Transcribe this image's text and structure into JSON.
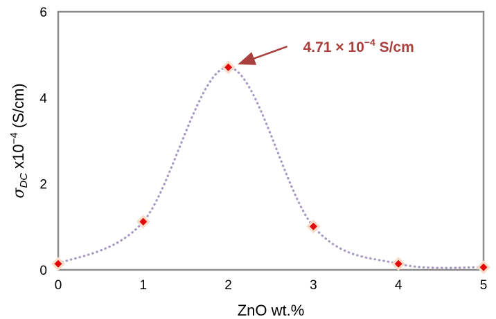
{
  "chart_data": {
    "type": "scatter",
    "x": [
      0,
      1,
      2,
      3,
      4,
      5
    ],
    "series": [
      {
        "values": [
          0.14,
          1.12,
          4.71,
          1.01,
          0.14,
          0.06
        ],
        "line_style": "dotted-smooth",
        "line_color": "#a797c3",
        "marker": "diamond",
        "marker_color": "#e2070a",
        "marker_halo_color": "#f9dcc8"
      }
    ],
    "xlabel": "ZnO wt.%",
    "ylabel": {
      "sigma": "σ",
      "subscript": "DC",
      "rest": " x10",
      "exponent": "−4",
      "unit": " (S/cm)"
    },
    "xlim": [
      0,
      5
    ],
    "ylim": [
      0,
      6
    ],
    "xticks": [
      "0",
      "1",
      "2",
      "3",
      "4",
      "5"
    ],
    "yticks": [
      "0",
      "2",
      "4",
      "6"
    ],
    "grid": false,
    "annotation": {
      "text_main": "4.71 × 10",
      "text_exp": "−4",
      "text_unit": " S/cm",
      "target": [
        2,
        4.71
      ],
      "color": "#a8403e"
    }
  }
}
